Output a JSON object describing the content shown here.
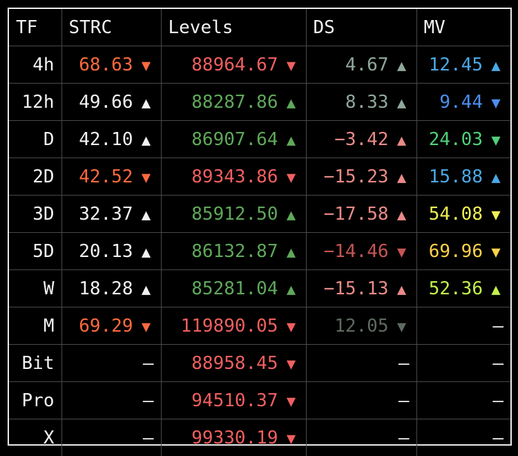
{
  "colors": {
    "white": "#f2f2f2",
    "orange": "#ff6a3d",
    "red": "#f05f5f",
    "green": "#5fa85a",
    "sage": "#8fa89a",
    "salmon": "#ea8a88",
    "darkred": "#c55555",
    "darkgray": "#5e6b60",
    "blue": "#4b8ff0",
    "lightblue": "#4aa9e6",
    "lightgreen": "#50cf7a",
    "yellow": "#f0f055",
    "gold": "#ffd24a",
    "mint": "#bff060",
    "lime": "#c2f24c"
  },
  "header": {
    "tf": "TF",
    "strc": "STRC",
    "levels": "Levels",
    "ds": "DS",
    "mv": "MV"
  },
  "rows": [
    {
      "tf": "4h",
      "strc": {
        "text": "68.63",
        "arrow": "▼",
        "color": "#ff6a3d",
        "arrow_color": "#ff6a3d"
      },
      "levels": {
        "text": "88964.67",
        "arrow": "▼",
        "color": "#f05f5f",
        "arrow_color": "#f05f5f"
      },
      "ds": {
        "text": "4.67",
        "arrow": "▲",
        "color": "#8fa89a",
        "arrow_color": "#8fa89a"
      },
      "mv": {
        "text": "12.45",
        "arrow": "▲",
        "color": "#4aa9e6",
        "arrow_color": "#4aa9e6"
      }
    },
    {
      "tf": "12h",
      "strc": {
        "text": "49.66",
        "arrow": "▲",
        "color": "#f2f2f2",
        "arrow_color": "#f2f2f2"
      },
      "levels": {
        "text": "88287.86",
        "arrow": "▲",
        "color": "#5fa85a",
        "arrow_color": "#5fa85a"
      },
      "ds": {
        "text": "8.33",
        "arrow": "▲",
        "color": "#8fa89a",
        "arrow_color": "#8fa89a"
      },
      "mv": {
        "text": "9.44",
        "arrow": "▼",
        "color": "#4b8ff0",
        "arrow_color": "#4b8ff0"
      }
    },
    {
      "tf": "D",
      "strc": {
        "text": "42.10",
        "arrow": "▲",
        "color": "#f2f2f2",
        "arrow_color": "#f2f2f2"
      },
      "levels": {
        "text": "86907.64",
        "arrow": "▲",
        "color": "#5fa85a",
        "arrow_color": "#5fa85a"
      },
      "ds": {
        "text": "−3.42",
        "arrow": "▲",
        "color": "#ea8a88",
        "arrow_color": "#ea8a88"
      },
      "mv": {
        "text": "24.03",
        "arrow": "▼",
        "color": "#50cf7a",
        "arrow_color": "#50cf7a"
      }
    },
    {
      "tf": "2D",
      "strc": {
        "text": "42.52",
        "arrow": "▼",
        "color": "#ff6a3d",
        "arrow_color": "#ff6a3d"
      },
      "levels": {
        "text": "89343.86",
        "arrow": "▼",
        "color": "#f05f5f",
        "arrow_color": "#f05f5f"
      },
      "ds": {
        "text": "−15.23",
        "arrow": "▲",
        "color": "#ea8a88",
        "arrow_color": "#ea8a88"
      },
      "mv": {
        "text": "15.88",
        "arrow": "▲",
        "color": "#4aa9e6",
        "arrow_color": "#4aa9e6"
      }
    },
    {
      "tf": "3D",
      "strc": {
        "text": "32.37",
        "arrow": "▲",
        "color": "#f2f2f2",
        "arrow_color": "#f2f2f2"
      },
      "levels": {
        "text": "85912.50",
        "arrow": "▲",
        "color": "#5fa85a",
        "arrow_color": "#5fa85a"
      },
      "ds": {
        "text": "−17.58",
        "arrow": "▲",
        "color": "#ea8a88",
        "arrow_color": "#ea8a88"
      },
      "mv": {
        "text": "54.08",
        "arrow": "▼",
        "color": "#f0f055",
        "arrow_color": "#f0f055"
      }
    },
    {
      "tf": "5D",
      "strc": {
        "text": "20.13",
        "arrow": "▲",
        "color": "#f2f2f2",
        "arrow_color": "#f2f2f2"
      },
      "levels": {
        "text": "86132.87",
        "arrow": "▲",
        "color": "#5fa85a",
        "arrow_color": "#5fa85a"
      },
      "ds": {
        "text": "−14.46",
        "arrow": "▼",
        "color": "#c55555",
        "arrow_color": "#c55555"
      },
      "mv": {
        "text": "69.96",
        "arrow": "▼",
        "color": "#ffd24a",
        "arrow_color": "#ffd24a"
      }
    },
    {
      "tf": "W",
      "strc": {
        "text": "18.28",
        "arrow": "▲",
        "color": "#f2f2f2",
        "arrow_color": "#f2f2f2"
      },
      "levels": {
        "text": "85281.04",
        "arrow": "▲",
        "color": "#5fa85a",
        "arrow_color": "#5fa85a"
      },
      "ds": {
        "text": "−15.13",
        "arrow": "▲",
        "color": "#ea8a88",
        "arrow_color": "#ea8a88"
      },
      "mv": {
        "text": "52.36",
        "arrow": "▲",
        "color": "#c2f24c",
        "arrow_color": "#c2f24c"
      }
    },
    {
      "tf": "M",
      "strc": {
        "text": "69.29",
        "arrow": "▼",
        "color": "#ff6a3d",
        "arrow_color": "#ff6a3d"
      },
      "levels": {
        "text": "119890.05",
        "arrow": "▼",
        "color": "#f05f5f",
        "arrow_color": "#f05f5f"
      },
      "ds": {
        "text": "12.05",
        "arrow": "▼",
        "color": "#5e6b60",
        "arrow_color": "#5e6b60"
      },
      "mv": {
        "text": "–",
        "arrow": "",
        "color": "#f2f2f2",
        "arrow_color": "#f2f2f2"
      }
    },
    {
      "tf": "Bit",
      "strc": {
        "text": "–",
        "arrow": "",
        "color": "#f2f2f2",
        "arrow_color": "#f2f2f2"
      },
      "levels": {
        "text": "88958.45",
        "arrow": "▼",
        "color": "#f05f5f",
        "arrow_color": "#f05f5f"
      },
      "ds": {
        "text": "–",
        "arrow": "",
        "color": "#f2f2f2",
        "arrow_color": "#f2f2f2"
      },
      "mv": {
        "text": "–",
        "arrow": "",
        "color": "#f2f2f2",
        "arrow_color": "#f2f2f2"
      }
    },
    {
      "tf": "Pro",
      "strc": {
        "text": "–",
        "arrow": "",
        "color": "#f2f2f2",
        "arrow_color": "#f2f2f2"
      },
      "levels": {
        "text": "94510.37",
        "arrow": "▼",
        "color": "#f05f5f",
        "arrow_color": "#f05f5f"
      },
      "ds": {
        "text": "–",
        "arrow": "",
        "color": "#f2f2f2",
        "arrow_color": "#f2f2f2"
      },
      "mv": {
        "text": "–",
        "arrow": "",
        "color": "#f2f2f2",
        "arrow_color": "#f2f2f2"
      }
    },
    {
      "tf": "X",
      "strc": {
        "text": "–",
        "arrow": "",
        "color": "#f2f2f2",
        "arrow_color": "#f2f2f2"
      },
      "levels": {
        "text": "99330.19",
        "arrow": "▼",
        "color": "#f05f5f",
        "arrow_color": "#f05f5f"
      },
      "ds": {
        "text": "–",
        "arrow": "",
        "color": "#f2f2f2",
        "arrow_color": "#f2f2f2"
      },
      "mv": {
        "text": "–",
        "arrow": "",
        "color": "#f2f2f2",
        "arrow_color": "#f2f2f2"
      }
    }
  ]
}
